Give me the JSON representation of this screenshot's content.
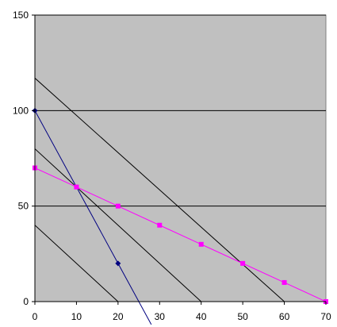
{
  "chart_data": {
    "type": "line",
    "xlim": [
      0,
      70
    ],
    "ylim": [
      0,
      150
    ],
    "x_ticks": [
      0,
      10,
      20,
      30,
      40,
      50,
      60,
      70
    ],
    "y_ticks": [
      0,
      50,
      100,
      150
    ],
    "x_tick_labels": [
      "0",
      "10",
      "20",
      "30",
      "40",
      "50",
      "60",
      "70"
    ],
    "y_tick_labels": [
      "0",
      "50",
      "100",
      "150"
    ],
    "grid": "horizontal",
    "legend": "none",
    "colors": {
      "plot_background": "#c0c0c0",
      "gridline": "#000000",
      "constraint_lines": "#000000",
      "blue_series": "#000080",
      "magenta_series": "#ff00ff"
    },
    "series": [
      {
        "style": "black-line",
        "points": [
          [
            0,
            40
          ],
          [
            20,
            0
          ]
        ]
      },
      {
        "style": "black-line",
        "points": [
          [
            0,
            80
          ],
          [
            40,
            0
          ]
        ]
      },
      {
        "style": "black-line",
        "points": [
          [
            0,
            117
          ],
          [
            60,
            0
          ]
        ]
      },
      {
        "style": "blue-diamond-line",
        "points": [
          [
            0,
            100
          ],
          [
            20,
            20
          ],
          [
            28,
            -12
          ]
        ],
        "markers": [
          [
            0,
            100
          ],
          [
            20,
            20
          ]
        ]
      },
      {
        "style": "magenta-square-line",
        "points": [
          [
            0,
            70
          ],
          [
            10,
            60
          ],
          [
            20,
            50
          ],
          [
            30,
            40
          ],
          [
            40,
            30
          ],
          [
            50,
            20
          ],
          [
            60,
            10
          ],
          [
            70,
            0
          ]
        ],
        "markers": [
          [
            0,
            70
          ],
          [
            10,
            60
          ],
          [
            20,
            50
          ],
          [
            30,
            40
          ],
          [
            40,
            30
          ],
          [
            50,
            20
          ],
          [
            60,
            10
          ],
          [
            70,
            0
          ]
        ]
      }
    ]
  }
}
